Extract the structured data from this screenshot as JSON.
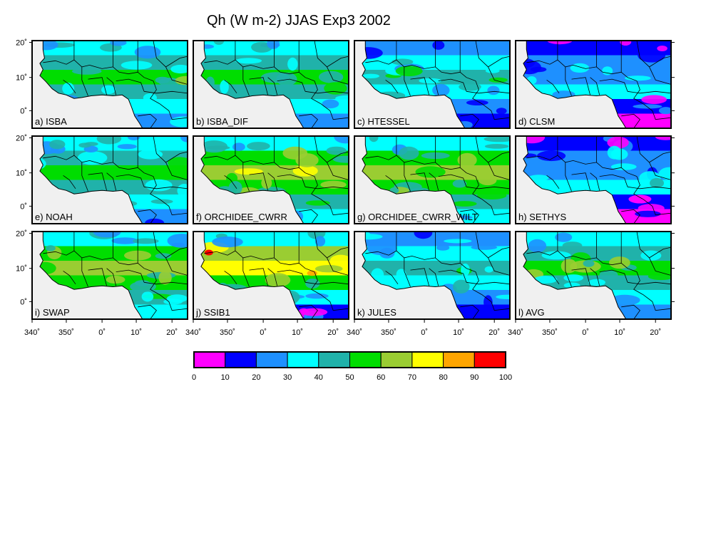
{
  "title": "Qh (W m-2) JJAS Exp3 2002",
  "panels": [
    {
      "label": "a) ISBA",
      "style": "mid"
    },
    {
      "label": "b) ISBA_DIF",
      "style": "mid"
    },
    {
      "label": "c) HTESSEL",
      "style": "low"
    },
    {
      "label": "d) CLSM",
      "style": "verylow"
    },
    {
      "label": "e) NOAH",
      "style": "mid"
    },
    {
      "label": "f) ORCHIDEE_CWRR",
      "style": "high"
    },
    {
      "label": "g) ORCHIDEE_CWRR_WILT",
      "style": "high"
    },
    {
      "label": "h) SETHYS",
      "style": "verylow"
    },
    {
      "label": "i) SWAP",
      "style": "high"
    },
    {
      "label": "j) SSIB1",
      "style": "veryhigh"
    },
    {
      "label": "k) JULES",
      "style": "low"
    },
    {
      "label": "l) AVG",
      "style": "mid"
    }
  ],
  "y_ticks": [
    "20˚",
    "10˚",
    "0˚"
  ],
  "x_ticks": [
    "340˚",
    "350˚",
    "0˚",
    "10˚",
    "20˚"
  ],
  "colorbar": {
    "colors": [
      "#ff00ff",
      "#0000ff",
      "#1e90ff",
      "#00ffff",
      "#20b2aa",
      "#00dd00",
      "#9acd32",
      "#ffff00",
      "#ffa500",
      "#ff0000"
    ],
    "tick_labels": [
      "0",
      "10",
      "20",
      "30",
      "40",
      "50",
      "60",
      "70",
      "80",
      "90",
      "100"
    ]
  },
  "colors": {
    "ocean": "#f0f0f0",
    "border": "#000000"
  }
}
